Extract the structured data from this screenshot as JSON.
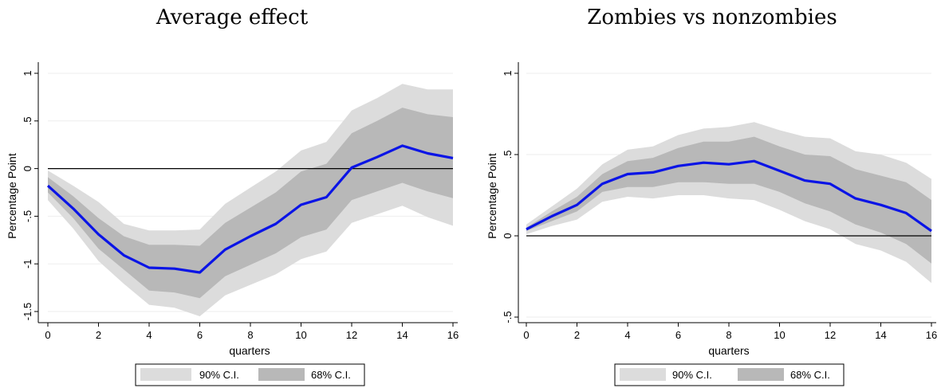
{
  "chart_data": [
    {
      "type": "line",
      "title": "Average effect",
      "xlabel": "quarters",
      "ylabel": "Percentage Point",
      "xlim": [
        0,
        16
      ],
      "ylim": [
        -1.5,
        1
      ],
      "xticks": [
        0,
        2,
        4,
        6,
        8,
        10,
        12,
        14,
        16
      ],
      "xtick_labels": [
        "0",
        "2",
        "4",
        "6",
        "8",
        "10",
        "12",
        "14",
        "16"
      ],
      "yticks": [
        -1.5,
        -1,
        -0.5,
        0,
        0.5,
        1
      ],
      "ytick_labels": [
        "-1.5",
        "-1",
        "-.5",
        "0",
        ".5",
        "1"
      ],
      "grid": true,
      "reference_line_y": 0,
      "x": [
        0,
        1,
        2,
        3,
        4,
        5,
        6,
        7,
        8,
        9,
        10,
        11,
        12,
        13,
        14,
        15,
        16
      ],
      "series": [
        {
          "values": [
            -0.18,
            -0.42,
            -0.69,
            -0.91,
            -1.04,
            -1.05,
            -1.09,
            -0.85,
            -0.71,
            -0.58,
            -0.38,
            -0.3,
            0.01,
            0.12,
            0.24,
            0.16,
            0.11
          ]
        }
      ],
      "bands": [
        {
          "name": "90% C.I.",
          "lower": [
            -0.33,
            -0.63,
            -0.97,
            -1.21,
            -1.43,
            -1.46,
            -1.55,
            -1.33,
            -1.22,
            -1.11,
            -0.95,
            -0.87,
            -0.57,
            -0.48,
            -0.39,
            -0.51,
            -0.6
          ],
          "upper": [
            -0.02,
            -0.18,
            -0.35,
            -0.58,
            -0.65,
            -0.65,
            -0.64,
            -0.37,
            -0.2,
            -0.03,
            0.19,
            0.28,
            0.61,
            0.74,
            0.89,
            0.83,
            0.83
          ]
        },
        {
          "name": "68% C.I.",
          "lower": [
            -0.25,
            -0.52,
            -0.84,
            -1.06,
            -1.28,
            -1.3,
            -1.36,
            -1.13,
            -1.01,
            -0.89,
            -0.72,
            -0.64,
            -0.33,
            -0.24,
            -0.15,
            -0.24,
            -0.31
          ],
          "upper": [
            -0.09,
            -0.29,
            -0.52,
            -0.71,
            -0.8,
            -0.8,
            -0.81,
            -0.57,
            -0.41,
            -0.25,
            -0.03,
            0.05,
            0.37,
            0.5,
            0.64,
            0.57,
            0.54
          ]
        }
      ],
      "legend": {
        "placement": "bottom",
        "items": [
          "90% C.I.",
          "68% C.I."
        ]
      },
      "colors": {
        "line": "#0a14e6",
        "ci90": "#dcdcdc",
        "ci68": "#b8b8b8",
        "zero": "#000000",
        "grid": "#eeeeee"
      }
    },
    {
      "type": "line",
      "title": "Zombies vs nonzombies",
      "xlabel": "quarters",
      "ylabel": "Percentage Point",
      "xlim": [
        0,
        16
      ],
      "ylim": [
        -0.5,
        1
      ],
      "xticks": [
        0,
        2,
        4,
        6,
        8,
        10,
        12,
        14,
        16
      ],
      "xtick_labels": [
        "0",
        "2",
        "4",
        "6",
        "8",
        "10",
        "12",
        "14",
        "16"
      ],
      "yticks": [
        -0.5,
        0,
        0.5,
        1
      ],
      "ytick_labels": [
        "-.5",
        "0",
        ".5",
        "1"
      ],
      "grid": true,
      "reference_line_y": 0,
      "x": [
        0,
        1,
        2,
        3,
        4,
        5,
        6,
        7,
        8,
        9,
        10,
        11,
        12,
        13,
        14,
        15,
        16
      ],
      "series": [
        {
          "values": [
            0.04,
            0.12,
            0.19,
            0.32,
            0.38,
            0.39,
            0.43,
            0.45,
            0.44,
            0.46,
            0.4,
            0.34,
            0.32,
            0.23,
            0.19,
            0.14,
            0.03
          ]
        }
      ],
      "bands": [
        {
          "name": "90% C.I.",
          "lower": [
            0.01,
            0.06,
            0.1,
            0.21,
            0.24,
            0.23,
            0.25,
            0.25,
            0.23,
            0.22,
            0.16,
            0.09,
            0.04,
            -0.05,
            -0.09,
            -0.16,
            -0.29
          ],
          "upper": [
            0.07,
            0.18,
            0.29,
            0.44,
            0.53,
            0.55,
            0.62,
            0.66,
            0.67,
            0.7,
            0.65,
            0.61,
            0.6,
            0.52,
            0.5,
            0.45,
            0.35
          ]
        },
        {
          "name": "68% C.I.",
          "lower": [
            0.03,
            0.09,
            0.15,
            0.27,
            0.3,
            0.3,
            0.33,
            0.33,
            0.32,
            0.32,
            0.27,
            0.2,
            0.15,
            0.07,
            0.02,
            -0.05,
            -0.17
          ],
          "upper": [
            0.05,
            0.15,
            0.24,
            0.38,
            0.46,
            0.48,
            0.54,
            0.58,
            0.58,
            0.61,
            0.55,
            0.5,
            0.49,
            0.41,
            0.37,
            0.33,
            0.22
          ]
        }
      ],
      "legend": {
        "placement": "bottom",
        "items": [
          "90% C.I.",
          "68% C.I."
        ]
      },
      "colors": {
        "line": "#0a14e6",
        "ci90": "#dcdcdc",
        "ci68": "#b8b8b8",
        "zero": "#000000",
        "grid": "#eeeeee"
      }
    }
  ]
}
